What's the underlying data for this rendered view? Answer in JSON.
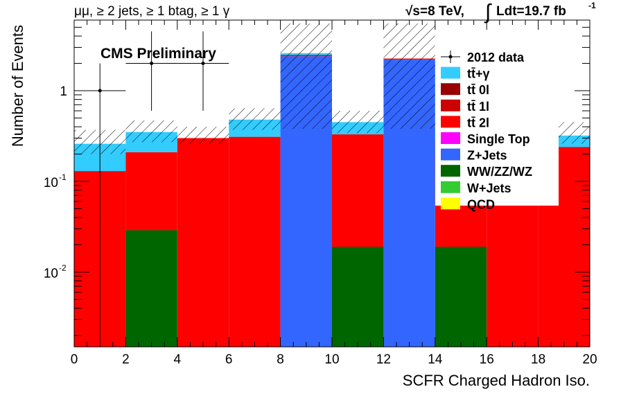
{
  "header": {
    "selection": "μμ, ≥ 2 jets, ≥ 1 btag, ≥ 1 γ",
    "energy": "√s=8 TeV,",
    "lumi_prefix": "∫",
    "lumi": "Ldt=19.7 fb",
    "lumi_exp": "-1"
  },
  "chart_data": {
    "type": "bar",
    "stacked": true,
    "title": "",
    "label_text": "CMS Preliminary",
    "xlabel": "SCFR Charged Hadron Iso.",
    "ylabel": "Number of Events",
    "xlim": [
      0,
      20
    ],
    "ylim": [
      0.0015,
      6.0
    ],
    "log_y": true,
    "grid": false,
    "x_ticks": [
      "0",
      "2",
      "4",
      "6",
      "8",
      "10",
      "12",
      "14",
      "16",
      "18",
      "20"
    ],
    "y_ticks": [
      {
        "value": 1,
        "label": "1"
      },
      {
        "value": 0.1,
        "base": "10",
        "exp": "-1"
      },
      {
        "value": 0.01,
        "base": "10",
        "exp": "-2"
      }
    ],
    "bins": [
      [
        0,
        2
      ],
      [
        2,
        4
      ],
      [
        4,
        6
      ],
      [
        6,
        8
      ],
      [
        8,
        10
      ],
      [
        10,
        12
      ],
      [
        12,
        14
      ],
      [
        14,
        16
      ],
      [
        16,
        18
      ],
      [
        18,
        20
      ]
    ],
    "series": [
      {
        "name": "QCD",
        "color": "#ffff00",
        "values": [
          0,
          0,
          0,
          0,
          0,
          0,
          0,
          0,
          0,
          0
        ]
      },
      {
        "name": "W+Jets",
        "color": "#33cc33",
        "values": [
          0,
          0,
          0,
          0,
          0,
          0,
          0,
          0,
          0,
          0
        ]
      },
      {
        "name": "WW/ZZ/WZ",
        "color": "#006600",
        "values": [
          0,
          0.029,
          0,
          0,
          0,
          0.019,
          0,
          0.019,
          0,
          0
        ]
      },
      {
        "name": "Z+Jets",
        "color": "#3366ff",
        "values": [
          0,
          0,
          0,
          0,
          2.4,
          0,
          2.2,
          0,
          0,
          0
        ]
      },
      {
        "name": "Single Top",
        "color": "#ff00ff",
        "values": [
          0,
          0,
          0,
          0,
          0,
          0,
          0,
          0,
          0,
          0
        ]
      },
      {
        "name": "tt̄ 2l",
        "color": "#ff0000",
        "values": [
          0.13,
          0.181,
          0.3,
          0.31,
          0.05,
          0.311,
          0.04,
          0.261,
          0.25,
          0.24
        ]
      },
      {
        "name": "tt̄ 1l",
        "color": "#cc0000",
        "values": [
          0,
          0,
          0,
          0,
          0.02,
          0,
          0.02,
          0,
          0,
          0
        ]
      },
      {
        "name": "tt̄ 0l",
        "color": "#990000",
        "values": [
          0,
          0,
          0,
          0,
          0,
          0,
          0,
          0,
          0,
          0
        ]
      },
      {
        "name": "tt̄+γ",
        "color": "#33ccff",
        "values": [
          0.13,
          0.14,
          0,
          0.17,
          0.12,
          0.12,
          0,
          0.06,
          0.07,
          0.08
        ]
      }
    ],
    "uncertainty_band": {
      "low": [
        0.2,
        0.27,
        0.26,
        0.37,
        0.38,
        0.34,
        0.38,
        0.3,
        0.28,
        0.26
      ],
      "high": [
        0.37,
        0.47,
        0.4,
        0.64,
        5.5,
        0.6,
        5.5,
        0.55,
        0.46,
        0.45
      ]
    },
    "data": {
      "name": "2012 data",
      "points": [
        {
          "x": 1,
          "y": 1.0,
          "xerr": 1,
          "ylow": 0.0015,
          "yhigh": 2.0
        },
        {
          "x": 3,
          "y": 2.0,
          "xerr": 1,
          "ylow": 0.6,
          "yhigh": 4.5
        },
        {
          "x": 5,
          "y": 2.0,
          "xerr": 1,
          "ylow": 0.6,
          "yhigh": 4.5
        }
      ]
    },
    "legend_position": "right",
    "legend": [
      {
        "label": "2012 data",
        "kind": "marker"
      },
      {
        "label": "tt̄+γ",
        "kind": "box",
        "color": "#33ccff"
      },
      {
        "label": "tt̄ 0l",
        "kind": "box",
        "color": "#990000"
      },
      {
        "label": "tt̄ 1l",
        "kind": "box",
        "color": "#cc0000"
      },
      {
        "label": "tt̄ 2l",
        "kind": "box",
        "color": "#ff0000"
      },
      {
        "label": "Single Top",
        "kind": "box",
        "color": "#ff00ff"
      },
      {
        "label": "Z+Jets",
        "kind": "box",
        "color": "#3366ff"
      },
      {
        "label": "WW/ZZ/WZ",
        "kind": "box",
        "color": "#006600"
      },
      {
        "label": "W+Jets",
        "kind": "box",
        "color": "#33cc33"
      },
      {
        "label": "QCD",
        "kind": "box",
        "color": "#ffff00"
      }
    ]
  }
}
